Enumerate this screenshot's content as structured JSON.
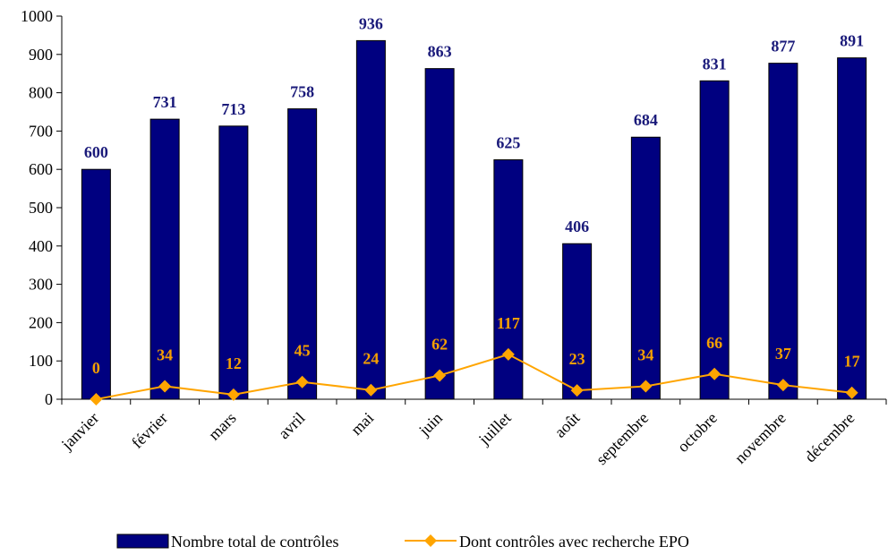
{
  "chart_data": {
    "type": "bar",
    "categories": [
      "janvier",
      "février",
      "mars",
      "avril",
      "mai",
      "juin",
      "juillet",
      "août",
      "septembre",
      "octobre",
      "novembre",
      "décembre"
    ],
    "series": [
      {
        "name": "Nombre total de contrôles",
        "type": "bar",
        "color": "#000080",
        "label_color": "#1a1a7a",
        "values": [
          600,
          731,
          713,
          758,
          936,
          863,
          625,
          406,
          684,
          831,
          877,
          891
        ]
      },
      {
        "name": "Dont contrôles avec recherche EPO",
        "type": "line",
        "color": "#FFA500",
        "label_color": "#F5A000",
        "values": [
          0,
          34,
          12,
          45,
          24,
          62,
          117,
          23,
          34,
          66,
          37,
          17
        ]
      }
    ],
    "title": "",
    "xlabel": "",
    "ylabel": "",
    "ylim": [
      0,
      1000
    ],
    "yticks": [
      0,
      100,
      200,
      300,
      400,
      500,
      600,
      700,
      800,
      900,
      1000
    ],
    "grid": false,
    "legend_position": "bottom"
  }
}
